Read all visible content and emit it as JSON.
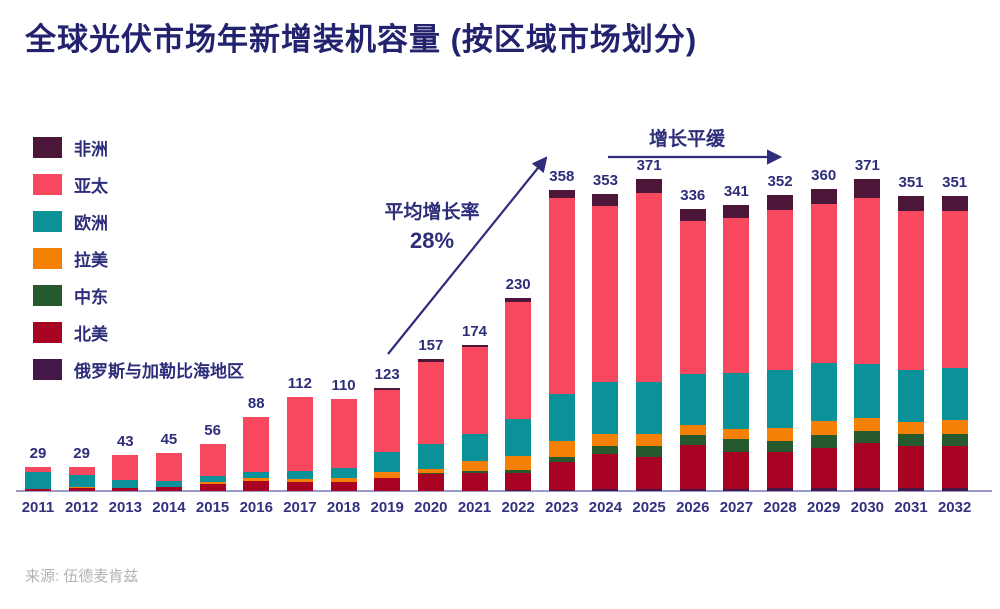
{
  "title": "全球光伏市场年新增装机容量 (按区域市场划分)",
  "source": "来源: 伍德麦肯兹",
  "annotations": {
    "avg_growth_line1": "平均增长率",
    "avg_growth_line2": "28%",
    "plateau": "增长平缓"
  },
  "colors": {
    "title_text": "#22226e",
    "label_text": "#2d2d7a",
    "axis_line": "#9a9ac9",
    "arrow": "#2d2d7a",
    "source_text": "#b2b2b2"
  },
  "chart_data": {
    "type": "bar",
    "stacked": true,
    "unit": "GW",
    "title": "全球光伏市场年新增装机容量 (按区域市场划分)",
    "categories": [
      "2011",
      "2012",
      "2013",
      "2014",
      "2015",
      "2016",
      "2017",
      "2018",
      "2019",
      "2020",
      "2021",
      "2022",
      "2023",
      "2024",
      "2025",
      "2026",
      "2027",
      "2028",
      "2029",
      "2030",
      "2031",
      "2032"
    ],
    "totals": [
      29,
      29,
      43,
      45,
      56,
      88,
      112,
      110,
      123,
      157,
      174,
      230,
      358,
      353,
      371,
      336,
      341,
      352,
      360,
      371,
      351,
      351
    ],
    "series": [
      {
        "name": "非洲",
        "color": "#4b1638",
        "values": [
          0,
          0,
          0,
          0,
          0,
          0,
          0,
          0,
          3,
          3,
          3,
          5,
          9,
          14,
          16,
          15,
          16,
          18,
          18,
          22,
          18,
          18
        ]
      },
      {
        "name": "亚太",
        "color": "#f8485e",
        "values": [
          6,
          10,
          30,
          33,
          38,
          65,
          88,
          83,
          73,
          98,
          103,
          139,
          234,
          209,
          225,
          182,
          184,
          190,
          190,
          198,
          189,
          187
        ]
      },
      {
        "name": "欧洲",
        "color": "#0b9298",
        "values": [
          21,
          14,
          10,
          7,
          7,
          8,
          10,
          12,
          24,
          30,
          32,
          44,
          55,
          62,
          62,
          60,
          67,
          69,
          69,
          64,
          62,
          62
        ]
      },
      {
        "name": "拉美",
        "color": "#f48105",
        "values": [
          0,
          2,
          0,
          0,
          3,
          3,
          3,
          4,
          8,
          5,
          12,
          17,
          20,
          14,
          14,
          12,
          12,
          15,
          16,
          16,
          14,
          16
        ]
      },
      {
        "name": "中东",
        "color": "#27592e",
        "values": [
          0,
          0,
          0,
          0,
          0,
          0,
          0,
          0,
          0,
          1,
          3,
          3,
          6,
          10,
          14,
          12,
          16,
          14,
          16,
          14,
          14,
          14
        ]
      },
      {
        "name": "北美",
        "color": "#a80322",
        "values": [
          2,
          3,
          3,
          5,
          8,
          12,
          11,
          11,
          15,
          20,
          21,
          21,
          33,
          42,
          38,
          53,
          44,
          43,
          48,
          54,
          51,
          51
        ]
      },
      {
        "name": "俄罗斯与加勒比海地区",
        "color": "#431747",
        "values": [
          0,
          0,
          0,
          0,
          0,
          0,
          0,
          0,
          0,
          0,
          0,
          1,
          1,
          2,
          2,
          2,
          2,
          3,
          3,
          3,
          3,
          3
        ]
      }
    ],
    "legend_order": [
      "非洲",
      "亚太",
      "欧洲",
      "拉美",
      "中东",
      "北美",
      "俄罗斯与加勒比海地区"
    ],
    "stack_order_bottom_to_top": [
      "俄罗斯与加勒比海地区",
      "北美",
      "中东",
      "拉美",
      "欧洲",
      "亚太",
      "非洲"
    ],
    "legend_position": "top-left",
    "grid": false,
    "value_labels": "above-bars",
    "xlabel": "",
    "ylabel": ""
  }
}
